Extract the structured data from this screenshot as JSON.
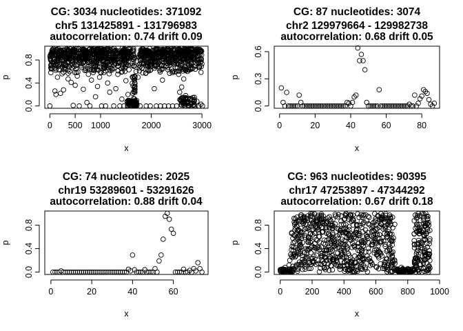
{
  "chart_data": [
    {
      "type": "scatter",
      "title_lines": [
        "CG:  3034   nucleotides:  371092",
        "chr5 131425891 - 131796983",
        "autocorrelation:  0.74   drift 0.09"
      ],
      "xlabel": "x",
      "ylabel": "p",
      "xlim": [
        -100,
        3120
      ],
      "ylim": [
        -0.04,
        1.04
      ],
      "xticks": [
        0,
        500,
        1000,
        2000,
        3000
      ],
      "xtick_labels": [
        "0",
        "500",
        "1000",
        "2000",
        "3000"
      ],
      "yticks": [
        0.0,
        0.4,
        0.8
      ],
      "ytick_labels": [
        "0.0",
        "0.4",
        "0.8"
      ],
      "points": [
        [
          0,
          0.0
        ],
        [
          20,
          0.58
        ],
        [
          40,
          0.66
        ],
        [
          60,
          0.75
        ],
        [
          80,
          0.88
        ],
        [
          100,
          0.26
        ],
        [
          120,
          0.2
        ],
        [
          150,
          0.5
        ],
        [
          180,
          0.63
        ],
        [
          210,
          0.22
        ],
        [
          240,
          0.56
        ],
        [
          270,
          0.28
        ],
        [
          300,
          0.7
        ],
        [
          330,
          0.83
        ],
        [
          360,
          0.47
        ],
        [
          390,
          0.6
        ],
        [
          420,
          0.41
        ],
        [
          460,
          0.01
        ],
        [
          500,
          0.36
        ],
        [
          540,
          0.52
        ],
        [
          580,
          0.0
        ],
        [
          620,
          0.67
        ],
        [
          660,
          0.29
        ],
        [
          700,
          0.9
        ],
        [
          730,
          0.06
        ],
        [
          760,
          0.55
        ],
        [
          790,
          0.0
        ],
        [
          820,
          0.45
        ],
        [
          860,
          0.62
        ],
        [
          900,
          0.16
        ],
        [
          940,
          0.34
        ],
        [
          980,
          0.5
        ],
        [
          1020,
          0.0
        ],
        [
          1060,
          0.72
        ],
        [
          1100,
          0.0
        ],
        [
          1140,
          0.4
        ],
        [
          1180,
          0.24
        ],
        [
          1220,
          0.65
        ],
        [
          1260,
          0.0
        ],
        [
          1300,
          0.3
        ],
        [
          1340,
          0.55
        ],
        [
          1380,
          0.0
        ],
        [
          1420,
          0.12
        ],
        [
          1460,
          0.0
        ],
        [
          1500,
          0.44
        ],
        [
          1540,
          0.2
        ],
        [
          1560,
          0.08
        ],
        [
          1580,
          0.02
        ],
        [
          1600,
          0.05
        ],
        [
          1620,
          0.0
        ],
        [
          1640,
          0.35
        ],
        [
          1660,
          0.01
        ],
        [
          1680,
          0.0
        ],
        [
          1700,
          0.6
        ],
        [
          1720,
          0.78
        ],
        [
          1740,
          0.5
        ],
        [
          1780,
          0.0
        ],
        [
          1820,
          0.66
        ],
        [
          1860,
          0.84
        ],
        [
          1900,
          0.0
        ],
        [
          1940,
          0.7
        ],
        [
          1980,
          0.0
        ],
        [
          2020,
          0.82
        ],
        [
          2060,
          0.3
        ],
        [
          2100,
          0.0
        ],
        [
          2140,
          0.9
        ],
        [
          2180,
          0.0
        ],
        [
          2220,
          0.45
        ],
        [
          2260,
          0.0
        ],
        [
          2300,
          0.92
        ],
        [
          2340,
          0.0
        ],
        [
          2380,
          0.75
        ],
        [
          2420,
          0.0
        ],
        [
          2460,
          0.86
        ],
        [
          2500,
          0.0
        ],
        [
          2540,
          0.55
        ],
        [
          2560,
          0.24
        ],
        [
          2580,
          0.1
        ],
        [
          2600,
          0.33
        ],
        [
          2620,
          0.06
        ],
        [
          2640,
          0.47
        ],
        [
          2660,
          0.0
        ],
        [
          2680,
          0.18
        ],
        [
          2700,
          0.05
        ],
        [
          2740,
          0.0
        ],
        [
          2780,
          0.64
        ],
        [
          2800,
          0.1
        ],
        [
          2830,
          0.02
        ],
        [
          2860,
          0.0
        ],
        [
          2900,
          0.08
        ],
        [
          2940,
          0.0
        ],
        [
          2980,
          0.03
        ],
        [
          3010,
          0.0
        ]
      ],
      "dense_bands": [
        {
          "x_from": 0,
          "x_to": 1600,
          "p_from": 0.55,
          "p_to": 1.0,
          "count": 600
        },
        {
          "x_from": 1760,
          "x_to": 3000,
          "p_from": 0.55,
          "p_to": 1.0,
          "count": 500
        },
        {
          "x_from": 1520,
          "x_to": 1720,
          "p_from": 0.0,
          "p_to": 0.1,
          "count": 50
        },
        {
          "x_from": 2560,
          "x_to": 2860,
          "p_from": 0.0,
          "p_to": 0.15,
          "count": 45
        },
        {
          "x_from": 1620,
          "x_to": 1680,
          "p_from": 0.0,
          "p_to": 1.0,
          "count": 40
        }
      ]
    },
    {
      "type": "scatter",
      "title_lines": [
        "CG:  87   nucleotides:  3074",
        "chr2 129979664 - 129982738",
        "autocorrelation:  0.68   drift 0.05"
      ],
      "xlabel": "x",
      "ylabel": "p",
      "xlim": [
        -3,
        90
      ],
      "ylim": [
        -0.025,
        0.66
      ],
      "xticks": [
        0,
        20,
        40,
        60,
        80
      ],
      "xtick_labels": [
        "0",
        "20",
        "40",
        "60",
        "80"
      ],
      "yticks": [
        0.0,
        0.3,
        0.6
      ],
      "ytick_labels": [
        "0.0",
        "0.3",
        "0.6"
      ],
      "points": [
        [
          1,
          0.2
        ],
        [
          2,
          0.04
        ],
        [
          3,
          0.0
        ],
        [
          4,
          0.15
        ],
        [
          5,
          0.0
        ],
        [
          6,
          0.0
        ],
        [
          7,
          0.0
        ],
        [
          8,
          0.0
        ],
        [
          9,
          0.0
        ],
        [
          10,
          0.0
        ],
        [
          11,
          0.12
        ],
        [
          12,
          0.04
        ],
        [
          13,
          0.0
        ],
        [
          14,
          0.0
        ],
        [
          15,
          0.0
        ],
        [
          16,
          0.0
        ],
        [
          17,
          0.0
        ],
        [
          18,
          0.0
        ],
        [
          19,
          0.0
        ],
        [
          20,
          0.0
        ],
        [
          21,
          0.0
        ],
        [
          22,
          0.0
        ],
        [
          23,
          0.0
        ],
        [
          24,
          0.0
        ],
        [
          25,
          0.0
        ],
        [
          26,
          0.0
        ],
        [
          27,
          0.0
        ],
        [
          28,
          0.0
        ],
        [
          29,
          0.0
        ],
        [
          30,
          0.0
        ],
        [
          31,
          0.0
        ],
        [
          32,
          0.0
        ],
        [
          33,
          0.0
        ],
        [
          34,
          0.0
        ],
        [
          35,
          0.0
        ],
        [
          36,
          0.0
        ],
        [
          37,
          0.0
        ],
        [
          38,
          0.04
        ],
        [
          39,
          0.03
        ],
        [
          40,
          0.0
        ],
        [
          41,
          0.04
        ],
        [
          42,
          0.1
        ],
        [
          43,
          0.12
        ],
        [
          44,
          0.64
        ],
        [
          45,
          0.5
        ],
        [
          46,
          0.57
        ],
        [
          47,
          0.5
        ],
        [
          48,
          0.4
        ],
        [
          49,
          0.04
        ],
        [
          50,
          0.0
        ],
        [
          51,
          0.0
        ],
        [
          52,
          0.0
        ],
        [
          53,
          0.0
        ],
        [
          54,
          0.0
        ],
        [
          55,
          0.0
        ],
        [
          56,
          0.18
        ],
        [
          57,
          0.0
        ],
        [
          58,
          0.0
        ],
        [
          59,
          0.0
        ],
        [
          60,
          0.0
        ],
        [
          61,
          0.0
        ],
        [
          62,
          0.0
        ],
        [
          63,
          0.0
        ],
        [
          64,
          0.0
        ],
        [
          65,
          0.0
        ],
        [
          66,
          0.0
        ],
        [
          67,
          0.0
        ],
        [
          68,
          0.0
        ],
        [
          69,
          0.0
        ],
        [
          70,
          0.0
        ],
        [
          71,
          0.0
        ],
        [
          72,
          0.0
        ],
        [
          73,
          0.02
        ],
        [
          74,
          0.0
        ],
        [
          75,
          0.0
        ],
        [
          76,
          0.12
        ],
        [
          77,
          0.0
        ],
        [
          78,
          0.03
        ],
        [
          79,
          0.08
        ],
        [
          80,
          0.11
        ],
        [
          81,
          0.18
        ],
        [
          82,
          0.16
        ],
        [
          83,
          0.14
        ],
        [
          84,
          0.07
        ],
        [
          85,
          0.02
        ],
        [
          86,
          0.0
        ],
        [
          87,
          0.03
        ]
      ]
    },
    {
      "type": "scatter",
      "title_lines": [
        "CG:  74   nucleotides:  2025",
        "chr19 53289601 - 53291626",
        "autocorrelation:  0.88   drift 0.04"
      ],
      "xlabel": "x",
      "ylabel": "p",
      "xlim": [
        -3,
        77
      ],
      "ylim": [
        -0.04,
        1.04
      ],
      "xticks": [
        0,
        20,
        40,
        60
      ],
      "xtick_labels": [
        "0",
        "20",
        "40",
        "60"
      ],
      "yticks": [
        0.0,
        0.4,
        0.8
      ],
      "ytick_labels": [
        "0.0",
        "0.4",
        "0.8"
      ],
      "points": [
        [
          1,
          0.0
        ],
        [
          2,
          0.0
        ],
        [
          3,
          0.0
        ],
        [
          4,
          0.0
        ],
        [
          5,
          0.02
        ],
        [
          6,
          0.0
        ],
        [
          7,
          0.0
        ],
        [
          8,
          0.0
        ],
        [
          9,
          0.0
        ],
        [
          10,
          0.0
        ],
        [
          11,
          0.0
        ],
        [
          12,
          0.0
        ],
        [
          13,
          0.0
        ],
        [
          14,
          0.0
        ],
        [
          15,
          0.0
        ],
        [
          16,
          0.0
        ],
        [
          17,
          0.0
        ],
        [
          18,
          0.0
        ],
        [
          19,
          0.0
        ],
        [
          20,
          0.0
        ],
        [
          21,
          0.0
        ],
        [
          22,
          0.0
        ],
        [
          23,
          0.0
        ],
        [
          24,
          0.0
        ],
        [
          25,
          0.0
        ],
        [
          26,
          0.0
        ],
        [
          27,
          0.0
        ],
        [
          28,
          0.0
        ],
        [
          29,
          0.0
        ],
        [
          30,
          0.0
        ],
        [
          31,
          0.0
        ],
        [
          32,
          0.0
        ],
        [
          33,
          0.0
        ],
        [
          34,
          0.0
        ],
        [
          35,
          0.0
        ],
        [
          36,
          0.0
        ],
        [
          37,
          0.0
        ],
        [
          38,
          0.05
        ],
        [
          39,
          0.02
        ],
        [
          40,
          0.29
        ],
        [
          41,
          0.04
        ],
        [
          42,
          0.0
        ],
        [
          43,
          0.0
        ],
        [
          44,
          0.0
        ],
        [
          45,
          0.0
        ],
        [
          46,
          0.04
        ],
        [
          47,
          0.0
        ],
        [
          48,
          0.0
        ],
        [
          49,
          0.0
        ],
        [
          50,
          0.0
        ],
        [
          51,
          0.06
        ],
        [
          52,
          0.0
        ],
        [
          53,
          0.19
        ],
        [
          54,
          0.29
        ],
        [
          55,
          0.56
        ],
        [
          56,
          0.95
        ],
        [
          57,
          1.0
        ],
        [
          58,
          0.9
        ],
        [
          59,
          0.73
        ],
        [
          60,
          0.66
        ],
        [
          61,
          0.0
        ],
        [
          62,
          0.0
        ],
        [
          63,
          0.0
        ],
        [
          64,
          0.0
        ],
        [
          65,
          0.05
        ],
        [
          66,
          0.0
        ],
        [
          67,
          0.0
        ],
        [
          68,
          0.03
        ],
        [
          69,
          0.0
        ],
        [
          70,
          0.06
        ],
        [
          71,
          0.02
        ],
        [
          72,
          0.16
        ],
        [
          73,
          0.06
        ],
        [
          74,
          0.0
        ]
      ]
    },
    {
      "type": "scatter",
      "title_lines": [
        "CG:  963   nucleotides:  90395",
        "chr17 47253897 - 47344292",
        "autocorrelation:  0.67   drift 0.18"
      ],
      "xlabel": "x",
      "ylabel": "p",
      "xlim": [
        -38,
        1000
      ],
      "ylim": [
        -0.04,
        1.04
      ],
      "xticks": [
        0,
        200,
        400,
        600,
        800,
        1000
      ],
      "xtick_labels": [
        "0",
        "200",
        "400",
        "600",
        "800",
        "1000"
      ],
      "yticks": [
        0.0,
        0.4,
        0.8
      ],
      "ytick_labels": [
        "0.0",
        "0.4",
        "0.8"
      ],
      "points": [
        [
          5,
          0.0
        ],
        [
          10,
          0.05
        ],
        [
          15,
          0.0
        ],
        [
          20,
          0.02
        ],
        [
          25,
          0.0
        ],
        [
          30,
          0.08
        ],
        [
          35,
          0.0
        ],
        [
          40,
          0.04
        ],
        [
          45,
          0.0
        ],
        [
          50,
          0.0
        ],
        [
          55,
          0.12
        ],
        [
          60,
          0.2
        ],
        [
          65,
          0.3
        ],
        [
          70,
          0.38
        ],
        [
          75,
          0.25
        ],
        [
          740,
          0.04
        ],
        [
          750,
          0.0
        ],
        [
          760,
          0.08
        ],
        [
          770,
          0.0
        ],
        [
          780,
          0.02
        ],
        [
          790,
          0.0
        ],
        [
          800,
          0.06
        ],
        [
          810,
          0.0
        ],
        [
          820,
          0.0
        ],
        [
          830,
          0.03
        ],
        [
          840,
          0.05
        ],
        [
          850,
          0.1
        ],
        [
          860,
          0.22
        ],
        [
          870,
          0.5
        ],
        [
          880,
          0.88
        ],
        [
          890,
          0.0
        ],
        [
          900,
          0.06
        ],
        [
          910,
          0.3
        ],
        [
          920,
          0.15
        ],
        [
          930,
          0.0
        ],
        [
          940,
          0.07
        ]
      ],
      "dense_bands": [
        {
          "x_from": 70,
          "x_to": 720,
          "p_from": 0.0,
          "p_to": 1.0,
          "count": 700
        },
        {
          "x_from": 840,
          "x_to": 940,
          "p_from": 0.0,
          "p_to": 1.0,
          "count": 140
        },
        {
          "x_from": 0,
          "x_to": 80,
          "p_from": 0.0,
          "p_to": 0.06,
          "count": 40
        },
        {
          "x_from": 720,
          "x_to": 840,
          "p_from": 0.0,
          "p_to": 0.06,
          "count": 50
        }
      ]
    }
  ]
}
